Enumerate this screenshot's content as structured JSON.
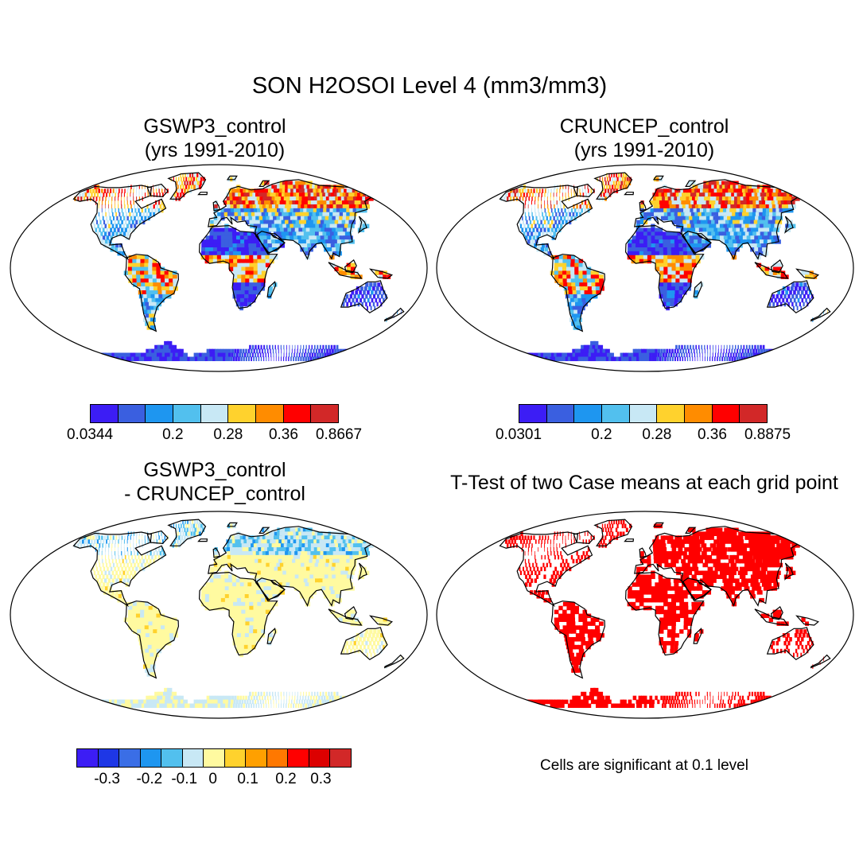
{
  "title": "SON H2OSOI Level 4 (mm3/mm3)",
  "panels": [
    {
      "id": "a",
      "title_line1": "GSWP3_control",
      "title_line2": "(yrs 1991-2010)",
      "style": "abs",
      "seed": 11
    },
    {
      "id": "b",
      "title_line1": "CRUNCEP_control",
      "title_line2": "(yrs 1991-2010)",
      "style": "abs",
      "seed": 29
    },
    {
      "id": "c",
      "title_line1": "GSWP3_control",
      "title_line2": "- CRUNCEP_control",
      "style": "diff",
      "seed": 7
    },
    {
      "id": "d",
      "title_line1": "T-Test of two Case means at each grid point",
      "title_line2": "",
      "style": "sig",
      "seed": 3
    }
  ],
  "colorbars": {
    "a": {
      "colors": [
        "#3c1df5",
        "#3a5fe0",
        "#1e96f0",
        "#52c0ee",
        "#c8e8f5",
        "#ffd22d",
        "#ff8c00",
        "#ff0000",
        "#d22828"
      ],
      "labels": [
        "0.0344",
        "0.2",
        "0.28",
        "0.36",
        "0.8667"
      ]
    },
    "b": {
      "colors": [
        "#3c1df5",
        "#3a5fe0",
        "#1e96f0",
        "#52c0ee",
        "#c8e8f5",
        "#ffd22d",
        "#ff8c00",
        "#ff0000",
        "#d22828"
      ],
      "labels": [
        "0.0301",
        "0.2",
        "0.28",
        "0.36",
        "0.8875"
      ]
    },
    "c": {
      "colors": [
        "#3c1df5",
        "#1e37e6",
        "#3a6ee6",
        "#1e96f0",
        "#52c0ee",
        "#c8e8f5",
        "#fffaa0",
        "#ffd22d",
        "#ffa000",
        "#ff7800",
        "#ff0000",
        "#dc0000",
        "#d22828"
      ],
      "labels": [
        "-0.3",
        "-0.2",
        "-0.1",
        "0",
        "0.1",
        "0.2",
        "0.3"
      ]
    }
  },
  "significance_note": "Cells are significant at 0.1 level",
  "significance_color": "#ff0000"
}
